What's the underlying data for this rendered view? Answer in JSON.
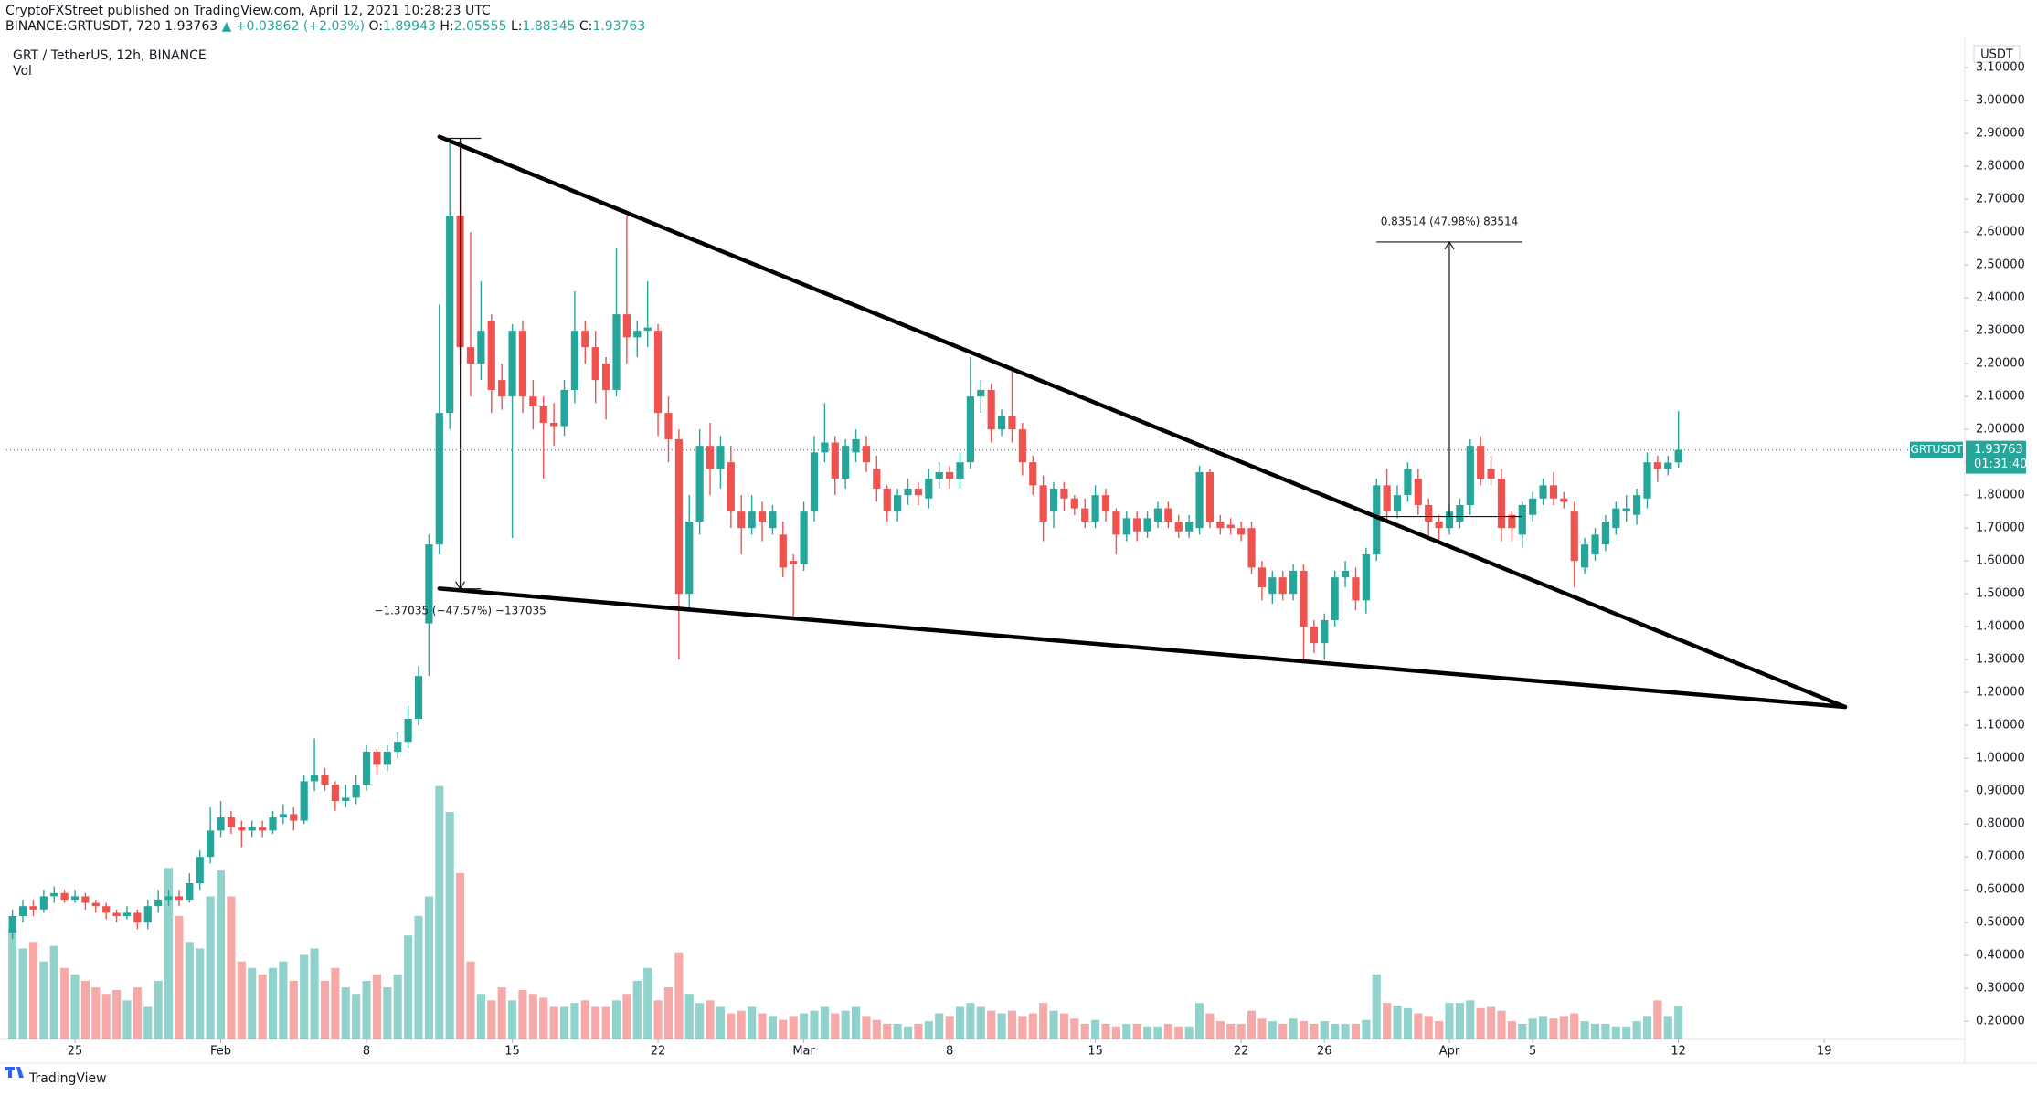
{
  "chart_data": {
    "type": "candlestick",
    "header": "CryptoFXStreet published on TradingView.com, April 12, 2021 10:28:23 UTC",
    "symbol": "BINANCE:GRTUSDT, 720",
    "change": "▲ +0.03862 (+2.03%)",
    "ohlc_labels": [
      "O:",
      "H:",
      "L:",
      "C:"
    ],
    "title": "GRT / TetherUS, 12h, BINANCE",
    "volume_label": "Vol",
    "currency": "USDT",
    "price_tag": {
      "symbol": "GRTUSDT",
      "countdown": "01:31:40"
    },
    "logo": "TradingView",
    "up_color": "#26a69a",
    "down_color": "#ef5350",
    "line_color": "#000000",
    "grid": false,
    "x": [
      "2021-01-22 00:00",
      "2021-01-22 12:00",
      "2021-01-23 00:00",
      "2021-01-23 12:00",
      "2021-01-24 00:00",
      "2021-01-24 12:00",
      "2021-01-25 00:00",
      "2021-01-25 12:00",
      "2021-01-26 00:00",
      "2021-01-26 12:00",
      "2021-01-27 00:00",
      "2021-01-27 12:00",
      "2021-01-28 00:00",
      "2021-01-28 12:00",
      "2021-01-29 00:00",
      "2021-01-29 12:00",
      "2021-01-30 00:00",
      "2021-01-30 12:00",
      "2021-01-31 00:00",
      "2021-01-31 12:00",
      "2021-02-01 00:00",
      "2021-02-01 12:00",
      "2021-02-02 00:00",
      "2021-02-02 12:00",
      "2021-02-03 00:00",
      "2021-02-03 12:00",
      "2021-02-04 00:00",
      "2021-02-04 12:00",
      "2021-02-05 00:00",
      "2021-02-05 12:00",
      "2021-02-06 00:00",
      "2021-02-06 12:00",
      "2021-02-07 00:00",
      "2021-02-07 12:00",
      "2021-02-08 00:00",
      "2021-02-08 12:00",
      "2021-02-09 00:00",
      "2021-02-09 12:00",
      "2021-02-10 00:00",
      "2021-02-10 12:00",
      "2021-02-11 00:00",
      "2021-02-11 12:00",
      "2021-02-12 00:00",
      "2021-02-12 12:00",
      "2021-02-13 00:00",
      "2021-02-13 12:00",
      "2021-02-14 00:00",
      "2021-02-14 12:00",
      "2021-02-15 00:00",
      "2021-02-15 12:00",
      "2021-02-16 00:00",
      "2021-02-16 12:00",
      "2021-02-17 00:00",
      "2021-02-17 12:00",
      "2021-02-18 00:00",
      "2021-02-18 12:00",
      "2021-02-19 00:00",
      "2021-02-19 12:00",
      "2021-02-20 00:00",
      "2021-02-20 12:00",
      "2021-02-21 00:00",
      "2021-02-21 12:00",
      "2021-02-22 00:00",
      "2021-02-22 12:00",
      "2021-02-23 00:00",
      "2021-02-23 12:00",
      "2021-02-24 00:00",
      "2021-02-24 12:00",
      "2021-02-25 00:00",
      "2021-02-25 12:00",
      "2021-02-26 00:00",
      "2021-02-26 12:00",
      "2021-02-27 00:00",
      "2021-02-27 12:00",
      "2021-02-28 00:00",
      "2021-02-28 12:00",
      "2021-03-01 00:00",
      "2021-03-01 12:00",
      "2021-03-02 00:00",
      "2021-03-02 12:00",
      "2021-03-03 00:00",
      "2021-03-03 12:00",
      "2021-03-04 00:00",
      "2021-03-04 12:00",
      "2021-03-05 00:00",
      "2021-03-05 12:00",
      "2021-03-06 00:00",
      "2021-03-06 12:00",
      "2021-03-07 00:00",
      "2021-03-07 12:00",
      "2021-03-08 00:00",
      "2021-03-08 12:00",
      "2021-03-09 00:00",
      "2021-03-09 12:00",
      "2021-03-10 00:00",
      "2021-03-10 12:00",
      "2021-03-11 00:00",
      "2021-03-11 12:00",
      "2021-03-12 00:00",
      "2021-03-12 12:00",
      "2021-03-13 00:00",
      "2021-03-13 12:00",
      "2021-03-14 00:00",
      "2021-03-14 12:00",
      "2021-03-15 00:00",
      "2021-03-15 12:00",
      "2021-03-16 00:00",
      "2021-03-16 12:00",
      "2021-03-17 00:00",
      "2021-03-17 12:00",
      "2021-03-18 00:00",
      "2021-03-18 12:00",
      "2021-03-19 00:00",
      "2021-03-19 12:00",
      "2021-03-20 00:00",
      "2021-03-20 12:00",
      "2021-03-21 00:00",
      "2021-03-21 12:00",
      "2021-03-22 00:00",
      "2021-03-22 12:00",
      "2021-03-23 00:00",
      "2021-03-23 12:00",
      "2021-03-24 00:00",
      "2021-03-24 12:00",
      "2021-03-25 00:00",
      "2021-03-25 12:00",
      "2021-03-26 00:00",
      "2021-03-26 12:00",
      "2021-03-27 00:00",
      "2021-03-27 12:00",
      "2021-03-28 00:00",
      "2021-03-28 12:00",
      "2021-03-29 00:00",
      "2021-03-29 12:00",
      "2021-03-30 00:00",
      "2021-03-30 12:00",
      "2021-03-31 00:00",
      "2021-03-31 12:00",
      "2021-04-01 00:00",
      "2021-04-01 12:00",
      "2021-04-02 00:00",
      "2021-04-02 12:00",
      "2021-04-03 00:00",
      "2021-04-03 12:00",
      "2021-04-04 00:00",
      "2021-04-04 12:00",
      "2021-04-05 00:00",
      "2021-04-05 12:00",
      "2021-04-06 00:00",
      "2021-04-06 12:00",
      "2021-04-07 00:00",
      "2021-04-07 12:00",
      "2021-04-08 00:00",
      "2021-04-08 12:00",
      "2021-04-09 00:00",
      "2021-04-09 12:00",
      "2021-04-10 00:00",
      "2021-04-10 12:00",
      "2021-04-11 00:00",
      "2021-04-11 12:00",
      "2021-04-12 00:00"
    ],
    "open": [
      0.47,
      0.52,
      0.55,
      0.54,
      0.58,
      0.59,
      0.57,
      0.58,
      0.56,
      0.55,
      0.53,
      0.52,
      0.53,
      0.5,
      0.55,
      0.57,
      0.58,
      0.57,
      0.62,
      0.7,
      0.78,
      0.82,
      0.79,
      0.78,
      0.79,
      0.78,
      0.82,
      0.83,
      0.81,
      0.93,
      0.95,
      0.92,
      0.87,
      0.88,
      0.92,
      1.02,
      0.98,
      1.02,
      1.05,
      1.12,
      1.41,
      1.65,
      2.05,
      2.65,
      2.25,
      2.2,
      2.33,
      2.15,
      2.1,
      2.3,
      2.1,
      2.07,
      2.02,
      2.01,
      2.12,
      2.3,
      2.25,
      2.2,
      2.12,
      2.35,
      2.28,
      2.3,
      2.3,
      2.05,
      1.97,
      1.5,
      1.72,
      1.95,
      1.88,
      1.9,
      1.75,
      1.7,
      1.75,
      1.7,
      1.68,
      1.6,
      1.59,
      1.75,
      1.93,
      1.96,
      1.85,
      1.93,
      1.95,
      1.88,
      1.82,
      1.75,
      1.8,
      1.82,
      1.79,
      1.85,
      1.87,
      1.85,
      1.9,
      2.1,
      2.12,
      2.0,
      2.04,
      2.0,
      1.9,
      1.83,
      1.75,
      1.82,
      1.79,
      1.76,
      1.72,
      1.8,
      1.75,
      1.68,
      1.73,
      1.69,
      1.72,
      1.76,
      1.72,
      1.69,
      1.7,
      1.87,
      1.72,
      1.71,
      1.7,
      1.7,
      1.58,
      1.5,
      1.55,
      1.5,
      1.57,
      1.4,
      1.35,
      1.42,
      1.55,
      1.55,
      1.48,
      1.62,
      1.83,
      1.75,
      1.8,
      1.85,
      1.77,
      1.72,
      1.7,
      1.72,
      1.77,
      1.95,
      1.88,
      1.85,
      1.74,
      1.68,
      1.74,
      1.79,
      1.83,
      1.79,
      1.75,
      1.58,
      1.62,
      1.65,
      1.7,
      1.75,
      1.74,
      1.79,
      1.9,
      1.88,
      1.89943
    ],
    "high": [
      0.54,
      0.57,
      0.57,
      0.6,
      0.61,
      0.6,
      0.6,
      0.59,
      0.57,
      0.56,
      0.54,
      0.55,
      0.54,
      0.57,
      0.6,
      0.6,
      0.6,
      0.65,
      0.72,
      0.85,
      0.87,
      0.84,
      0.81,
      0.81,
      0.81,
      0.84,
      0.86,
      0.85,
      0.95,
      1.06,
      0.97,
      0.93,
      0.92,
      0.95,
      1.04,
      1.03,
      1.04,
      1.08,
      1.16,
      1.28,
      1.68,
      2.38,
      2.88,
      2.88,
      2.6,
      2.45,
      2.35,
      2.2,
      2.32,
      2.33,
      2.15,
      2.1,
      2.08,
      2.15,
      2.42,
      2.33,
      2.3,
      2.22,
      2.55,
      2.65,
      2.33,
      2.45,
      2.32,
      2.1,
      2.0,
      1.8,
      2.0,
      2.02,
      1.98,
      1.95,
      1.8,
      1.8,
      1.78,
      1.77,
      1.72,
      1.62,
      1.78,
      1.98,
      2.08,
      1.98,
      1.97,
      2.0,
      1.98,
      1.92,
      1.83,
      1.82,
      1.85,
      1.84,
      1.88,
      1.9,
      1.89,
      1.93,
      2.22,
      2.15,
      2.14,
      2.06,
      2.18,
      2.02,
      1.92,
      1.86,
      1.84,
      1.84,
      1.8,
      1.79,
      1.83,
      1.82,
      1.76,
      1.75,
      1.75,
      1.75,
      1.78,
      1.78,
      1.74,
      1.74,
      1.89,
      1.88,
      1.74,
      1.73,
      1.72,
      1.72,
      1.6,
      1.57,
      1.57,
      1.59,
      1.59,
      1.42,
      1.44,
      1.57,
      1.6,
      1.58,
      1.64,
      1.85,
      1.88,
      1.83,
      1.9,
      1.88,
      1.79,
      1.74,
      1.77,
      1.79,
      1.97,
      1.98,
      1.92,
      1.88,
      1.75,
      1.78,
      1.81,
      1.85,
      1.87,
      1.81,
      1.78,
      1.67,
      1.7,
      1.74,
      1.78,
      1.8,
      1.82,
      1.93,
      1.92,
      1.92,
      2.05555
    ],
    "low": [
      0.45,
      0.5,
      0.52,
      0.53,
      0.56,
      0.56,
      0.56,
      0.54,
      0.53,
      0.51,
      0.5,
      0.51,
      0.48,
      0.48,
      0.53,
      0.55,
      0.55,
      0.56,
      0.6,
      0.68,
      0.76,
      0.77,
      0.73,
      0.76,
      0.76,
      0.77,
      0.8,
      0.78,
      0.8,
      0.9,
      0.9,
      0.84,
      0.85,
      0.86,
      0.9,
      0.95,
      0.96,
      1.0,
      1.03,
      1.1,
      1.25,
      1.62,
      2.0,
      2.2,
      2.1,
      2.15,
      2.05,
      2.06,
      1.67,
      2.05,
      2.0,
      1.85,
      1.95,
      1.98,
      2.08,
      2.2,
      2.08,
      2.03,
      2.1,
      2.2,
      2.22,
      2.25,
      1.98,
      1.9,
      1.3,
      1.45,
      1.68,
      1.8,
      1.82,
      1.7,
      1.62,
      1.68,
      1.66,
      1.68,
      1.55,
      1.42,
      1.57,
      1.72,
      1.9,
      1.8,
      1.82,
      1.9,
      1.87,
      1.78,
      1.72,
      1.72,
      1.77,
      1.77,
      1.76,
      1.82,
      1.82,
      1.82,
      1.88,
      2.05,
      1.96,
      1.98,
      1.96,
      1.86,
      1.8,
      1.66,
      1.7,
      1.75,
      1.74,
      1.7,
      1.7,
      1.72,
      1.62,
      1.66,
      1.66,
      1.67,
      1.7,
      1.7,
      1.67,
      1.67,
      1.68,
      1.7,
      1.68,
      1.68,
      1.66,
      1.56,
      1.48,
      1.47,
      1.48,
      1.48,
      1.3,
      1.32,
      1.3,
      1.4,
      1.52,
      1.45,
      1.44,
      1.6,
      1.72,
      1.73,
      1.78,
      1.74,
      1.67,
      1.65,
      1.68,
      1.7,
      1.74,
      1.83,
      1.83,
      1.66,
      1.66,
      1.64,
      1.72,
      1.77,
      1.77,
      1.76,
      1.52,
      1.56,
      1.6,
      1.63,
      1.68,
      1.72,
      1.71,
      1.76,
      1.84,
      1.86,
      1.88345
    ],
    "close": [
      0.52,
      0.55,
      0.54,
      0.58,
      0.59,
      0.57,
      0.58,
      0.56,
      0.55,
      0.53,
      0.52,
      0.53,
      0.5,
      0.55,
      0.57,
      0.58,
      0.57,
      0.62,
      0.7,
      0.78,
      0.82,
      0.79,
      0.78,
      0.79,
      0.78,
      0.82,
      0.83,
      0.81,
      0.93,
      0.95,
      0.92,
      0.87,
      0.88,
      0.92,
      1.02,
      0.98,
      1.02,
      1.05,
      1.12,
      1.25,
      1.65,
      2.05,
      2.65,
      2.25,
      2.2,
      2.3,
      2.12,
      2.1,
      2.3,
      2.1,
      2.07,
      2.02,
      2.01,
      2.12,
      2.3,
      2.25,
      2.15,
      2.12,
      2.35,
      2.28,
      2.3,
      2.31,
      2.05,
      1.97,
      1.5,
      1.72,
      1.95,
      1.88,
      1.95,
      1.75,
      1.7,
      1.75,
      1.72,
      1.75,
      1.58,
      1.59,
      1.75,
      1.93,
      1.96,
      1.85,
      1.95,
      1.97,
      1.9,
      1.82,
      1.75,
      1.8,
      1.82,
      1.8,
      1.85,
      1.87,
      1.85,
      1.9,
      2.1,
      2.12,
      2.0,
      2.04,
      2.0,
      1.9,
      1.83,
      1.72,
      1.82,
      1.79,
      1.76,
      1.72,
      1.8,
      1.75,
      1.68,
      1.73,
      1.69,
      1.73,
      1.76,
      1.72,
      1.69,
      1.72,
      1.87,
      1.72,
      1.7,
      1.7,
      1.68,
      1.58,
      1.52,
      1.55,
      1.5,
      1.57,
      1.4,
      1.35,
      1.42,
      1.55,
      1.57,
      1.48,
      1.62,
      1.83,
      1.75,
      1.8,
      1.88,
      1.77,
      1.72,
      1.7,
      1.75,
      1.77,
      1.95,
      1.85,
      1.85,
      1.7,
      1.7,
      1.77,
      1.79,
      1.83,
      1.79,
      1.78,
      1.6,
      1.65,
      1.68,
      1.72,
      1.76,
      1.76,
      1.8,
      1.9,
      1.88,
      1.89901,
      1.93763
    ],
    "volume": [
      85,
      70,
      75,
      60,
      72,
      55,
      50,
      45,
      40,
      35,
      38,
      30,
      40,
      25,
      45,
      132,
      95,
      75,
      70,
      110,
      130,
      110,
      60,
      55,
      50,
      55,
      60,
      45,
      65,
      70,
      45,
      55,
      40,
      35,
      45,
      50,
      40,
      50,
      80,
      95,
      110,
      195,
      175,
      128,
      60,
      35,
      30,
      40,
      30,
      38,
      35,
      32,
      25,
      25,
      28,
      30,
      25,
      25,
      30,
      35,
      45,
      55,
      30,
      40,
      67,
      35,
      28,
      30,
      25,
      20,
      22,
      25,
      20,
      18,
      15,
      18,
      20,
      22,
      25,
      20,
      22,
      25,
      18,
      15,
      12,
      12,
      10,
      12,
      14,
      20,
      18,
      25,
      28,
      25,
      22,
      20,
      22,
      18,
      20,
      28,
      22,
      20,
      16,
      12,
      15,
      12,
      10,
      12,
      12,
      10,
      10,
      12,
      10,
      10,
      28,
      20,
      14,
      12,
      12,
      22,
      16,
      14,
      12,
      16,
      14,
      12,
      14,
      12,
      12,
      12,
      15,
      50,
      28,
      26,
      24,
      20,
      18,
      14,
      28,
      28,
      30,
      24,
      25,
      22,
      14,
      12,
      16,
      18,
      16,
      18,
      20,
      14,
      12,
      12,
      10,
      10,
      14,
      18,
      30,
      18,
      26
    ],
    "xlim": [
      "2021-01-21 17:00",
      "2021-04-25 18:00"
    ],
    "xticks": [
      {
        "value": "2021-01-25 00:00",
        "label": "25"
      },
      {
        "value": "2021-02-01 00:00",
        "label": "Feb"
      },
      {
        "value": "2021-02-08 00:00",
        "label": "8"
      },
      {
        "value": "2021-02-15 00:00",
        "label": "15"
      },
      {
        "value": "2021-02-22 00:00",
        "label": "22"
      },
      {
        "value": "2021-03-01 00:00",
        "label": "Mar"
      },
      {
        "value": "2021-03-08 00:00",
        "label": "8"
      },
      {
        "value": "2021-03-15 00:00",
        "label": "15"
      },
      {
        "value": "2021-03-22 00:00",
        "label": "22"
      },
      {
        "value": "2021-03-26 00:00",
        "label": "26"
      },
      {
        "value": "2021-04-01 00:00",
        "label": "Apr"
      },
      {
        "value": "2021-04-05 00:00",
        "label": "5"
      },
      {
        "value": "2021-04-12 00:00",
        "label": "12"
      },
      {
        "value": "2021-04-19 00:00",
        "label": "19"
      }
    ],
    "ylim": [
      0.145,
      3.167
    ],
    "yticks": [
      {
        "value": 0.2,
        "label": "0.20000"
      },
      {
        "value": 0.3,
        "label": "0.30000"
      },
      {
        "value": 0.4,
        "label": "0.40000"
      },
      {
        "value": 0.5,
        "label": "0.50000"
      },
      {
        "value": 0.6,
        "label": "0.60000"
      },
      {
        "value": 0.7,
        "label": "0.70000"
      },
      {
        "value": 0.8,
        "label": "0.80000"
      },
      {
        "value": 0.9,
        "label": "0.90000"
      },
      {
        "value": 1.0,
        "label": "1.00000"
      },
      {
        "value": 1.1,
        "label": "1.10000"
      },
      {
        "value": 1.2,
        "label": "1.20000"
      },
      {
        "value": 1.3,
        "label": "1.30000"
      },
      {
        "value": 1.4,
        "label": "1.40000"
      },
      {
        "value": 1.5,
        "label": "1.50000"
      },
      {
        "value": 1.6,
        "label": "1.60000"
      },
      {
        "value": 1.7,
        "label": "1.70000"
      },
      {
        "value": 1.8,
        "label": "1.80000"
      },
      {
        "value": 1.9,
        "label": "1.90000"
      },
      {
        "value": 2.0,
        "label": "2.00000"
      },
      {
        "value": 2.1,
        "label": "2.10000"
      },
      {
        "value": 2.2,
        "label": "2.20000"
      },
      {
        "value": 2.3,
        "label": "2.30000"
      },
      {
        "value": 2.4,
        "label": "2.40000"
      },
      {
        "value": 2.5,
        "label": "2.50000"
      },
      {
        "value": 2.6,
        "label": "2.60000"
      },
      {
        "value": 2.7,
        "label": "2.70000"
      },
      {
        "value": 2.8,
        "label": "2.80000"
      },
      {
        "value": 2.9,
        "label": "2.90000"
      },
      {
        "value": 3.0,
        "label": "3.00000"
      },
      {
        "value": 3.1,
        "label": "3.10000"
      }
    ],
    "trendlines": [
      {
        "x": [
          "2021-02-11 12:00",
          "2021-04-20 00:00"
        ],
        "y": [
          2.89,
          1.156
        ]
      },
      {
        "x": [
          "2021-02-11 12:00",
          "2021-04-20 00:00"
        ],
        "y": [
          1.516,
          1.156
        ]
      }
    ],
    "measures": [
      {
        "label": "−1.37035 (−47.57%) −137035",
        "x": [
          "2021-02-11 12:00",
          "2021-02-13 12:00"
        ],
        "y": [
          2.885,
          1.515
        ]
      },
      {
        "label": "0.83514 (47.98%) 83514",
        "x": [
          "2021-03-28 12:00",
          "2021-04-04 12:00"
        ],
        "y": [
          1.735,
          2.57
        ]
      }
    ]
  }
}
